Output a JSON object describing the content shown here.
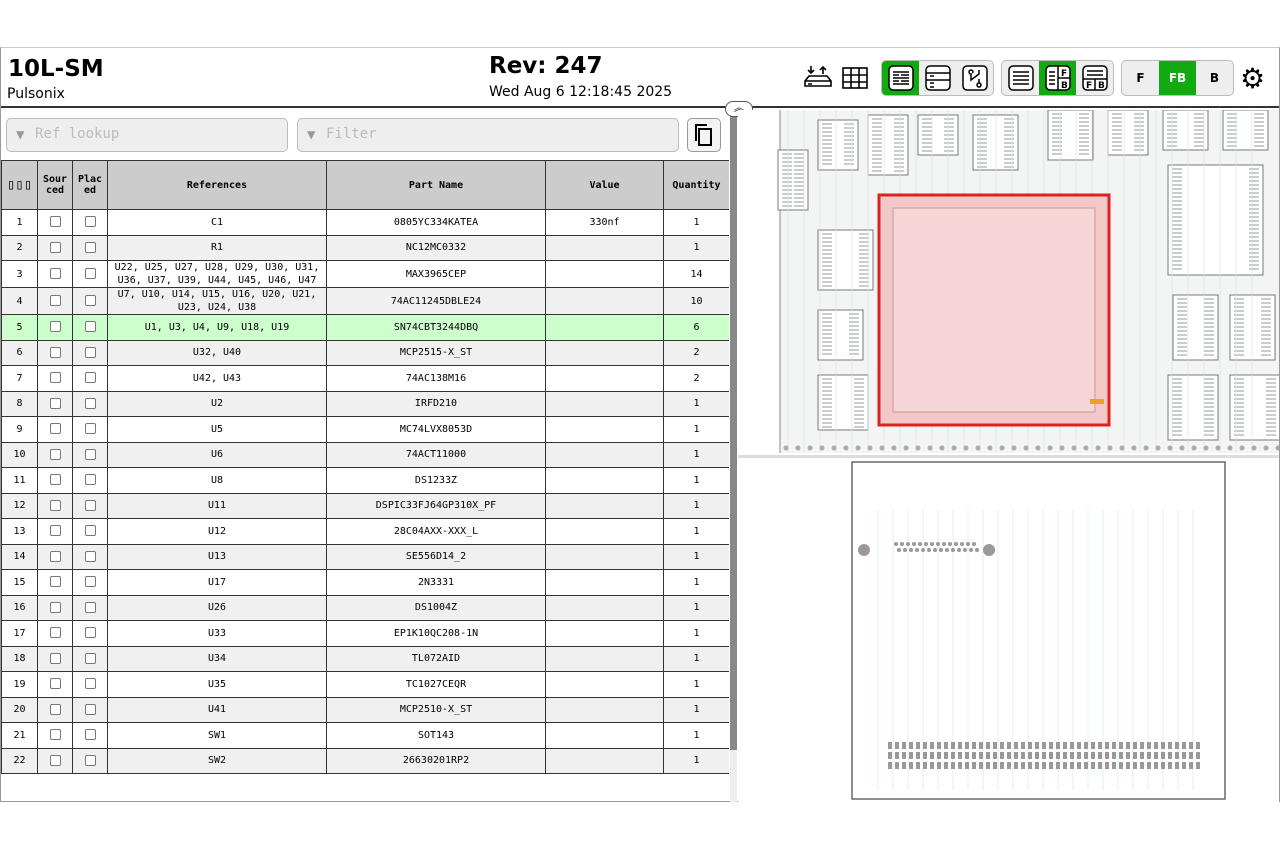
{
  "header": {
    "title": "10L-SM",
    "subtitle": "Pulsonix",
    "revision": "Rev: 247",
    "date": "Wed Aug 6 12:18:45 2025"
  },
  "toolbar": {
    "icons": [
      "dnp-outline-icon",
      "fabrication-grid-icon"
    ],
    "bom_modes": [
      {
        "name": "bom-grouped",
        "active": true
      },
      {
        "name": "bom-ungrouped",
        "active": false
      },
      {
        "name": "netlist",
        "active": false
      }
    ],
    "layouts": [
      {
        "name": "bom-only",
        "active": false
      },
      {
        "name": "bom-left-fb-right",
        "active": true
      },
      {
        "name": "bom-top-fb-bottom",
        "active": false
      }
    ],
    "layers": [
      {
        "label": "F",
        "active": false
      },
      {
        "label": "FB",
        "active": true
      },
      {
        "label": "B",
        "active": false
      }
    ],
    "accent": "#11aa11"
  },
  "search": {
    "ref_placeholder": "Ref lookup",
    "filter_placeholder": "Filter"
  },
  "table": {
    "headers": [
      "Sourced",
      "Placed",
      "References",
      "Part Name",
      "Value",
      "Quantity"
    ],
    "rows": [
      [
        "1",
        "C1",
        "0805YC334KATEA",
        "330nf",
        "1"
      ],
      [
        "2",
        "R1",
        "NC12MC0332",
        "",
        "1"
      ],
      [
        "3",
        "U22, U25, U27, U28, U29, U30, U31, U36, U37, U39, U44, U45, U46, U47",
        "MAX3965CEP",
        "",
        "14"
      ],
      [
        "4",
        "U7, U10, U14, U15, U16, U20, U21, U23, U24, U38",
        "74AC11245DBLE24",
        "",
        "10"
      ],
      [
        "5",
        "U1, U3, U4, U9, U18, U19",
        "SN74CBT3244DBQ",
        "",
        "6"
      ],
      [
        "6",
        "U32, U40",
        "MCP2515-X_ST",
        "",
        "2"
      ],
      [
        "7",
        "U42, U43",
        "74AC138M16",
        "",
        "2"
      ],
      [
        "8",
        "U2",
        "IRFD210",
        "",
        "1"
      ],
      [
        "9",
        "U5",
        "MC74LVX8053D",
        "",
        "1"
      ],
      [
        "10",
        "U6",
        "74ACT11000",
        "",
        "1"
      ],
      [
        "11",
        "U8",
        "DS1233Z",
        "",
        "1"
      ],
      [
        "12",
        "U11",
        "DSPIC33FJ64GP310X_PF",
        "",
        "1"
      ],
      [
        "13",
        "U12",
        "28C04AXX-XXX_L",
        "",
        "1"
      ],
      [
        "14",
        "U13",
        "SE556D14_2",
        "",
        "1"
      ],
      [
        "15",
        "U17",
        "2N3331",
        "",
        "1"
      ],
      [
        "16",
        "U26",
        "DS1004Z",
        "",
        "1"
      ],
      [
        "17",
        "U33",
        "EP1K10QC208-1N",
        "",
        "1"
      ],
      [
        "18",
        "U34",
        "TL072AID",
        "",
        "1"
      ],
      [
        "19",
        "U35",
        "TC1027CEQR",
        "",
        "1"
      ],
      [
        "20",
        "U41",
        "MCP2510-X_ST",
        "",
        "1"
      ],
      [
        "21",
        "SW1",
        "SOT143",
        "",
        "1"
      ],
      [
        "22",
        "SW2",
        "26630201RP2",
        "",
        "1"
      ]
    ],
    "highlighted_row": 5,
    "highlight_color": "#ccffcc"
  }
}
